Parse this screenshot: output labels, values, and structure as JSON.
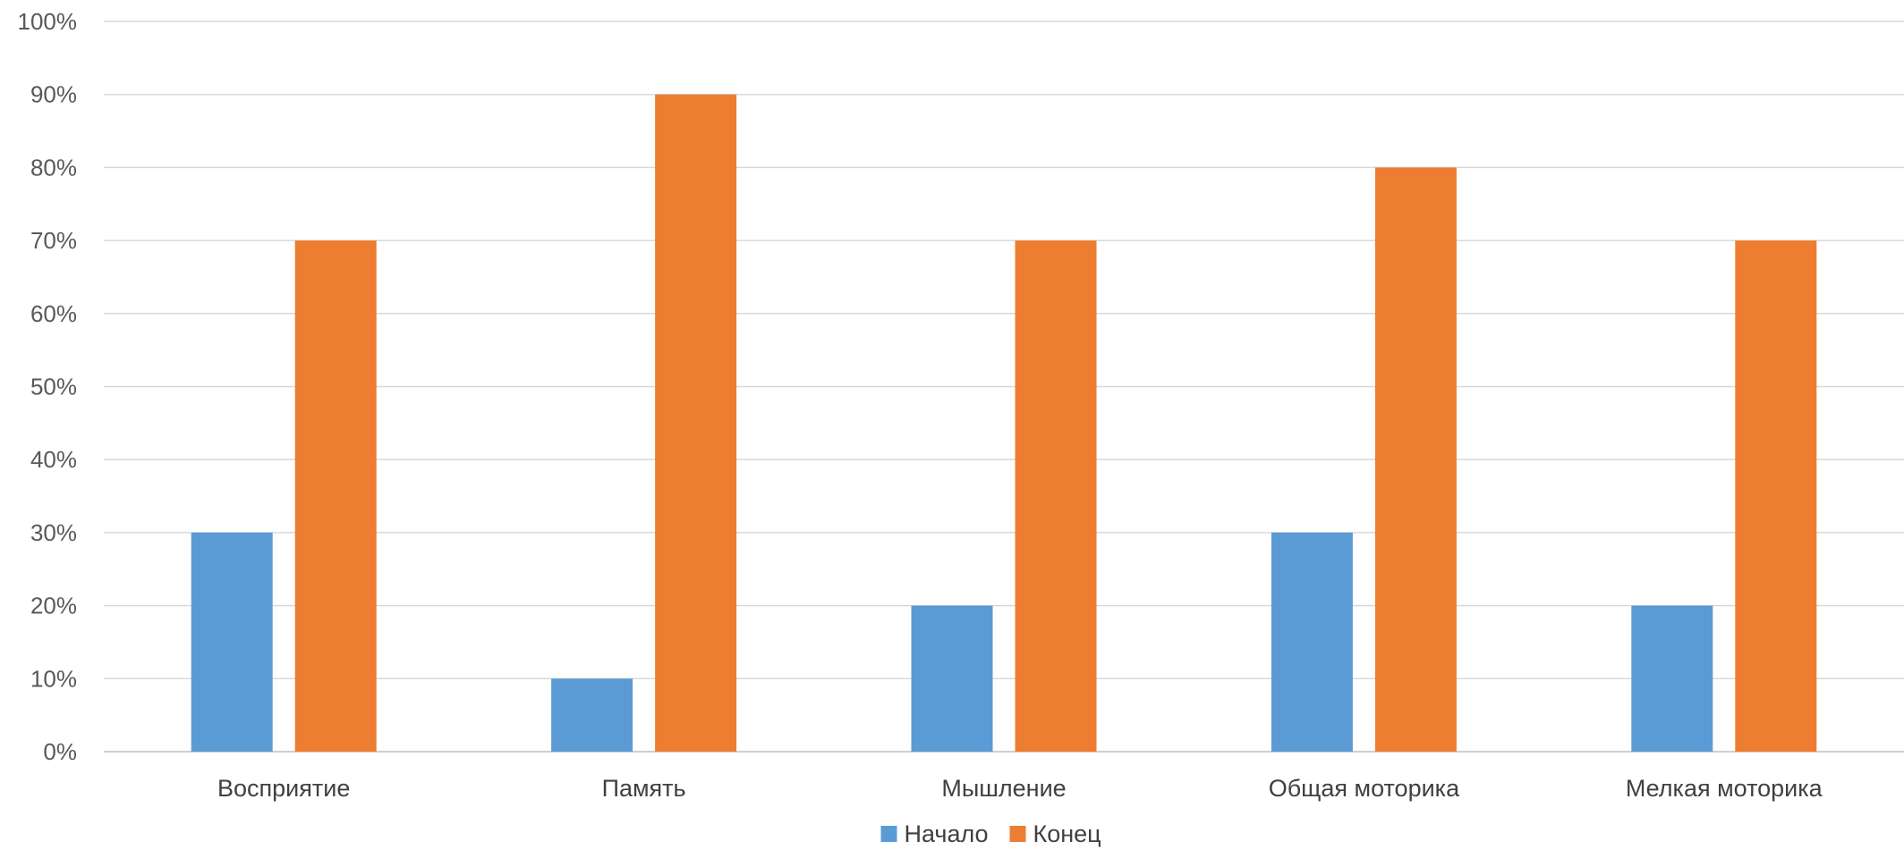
{
  "chart_data": {
    "type": "bar",
    "title": "",
    "xlabel": "",
    "ylabel": "",
    "categories": [
      "Восприятие",
      "Память",
      "Мышление",
      "Общая моторика",
      "Мелкая моторика"
    ],
    "series": [
      {
        "name": "Начало",
        "color": "#5b9bd5",
        "values": [
          30,
          10,
          20,
          30,
          20
        ]
      },
      {
        "name": "Конец",
        "color": "#ed7d31",
        "values": [
          70,
          90,
          70,
          80,
          70
        ]
      }
    ],
    "ylim": [
      0,
      100
    ],
    "yticks": [
      "0%",
      "10%",
      "20%",
      "30%",
      "40%",
      "50%",
      "60%",
      "70%",
      "80%",
      "90%",
      "100%"
    ],
    "grid": true,
    "legend": "bottom-center"
  }
}
